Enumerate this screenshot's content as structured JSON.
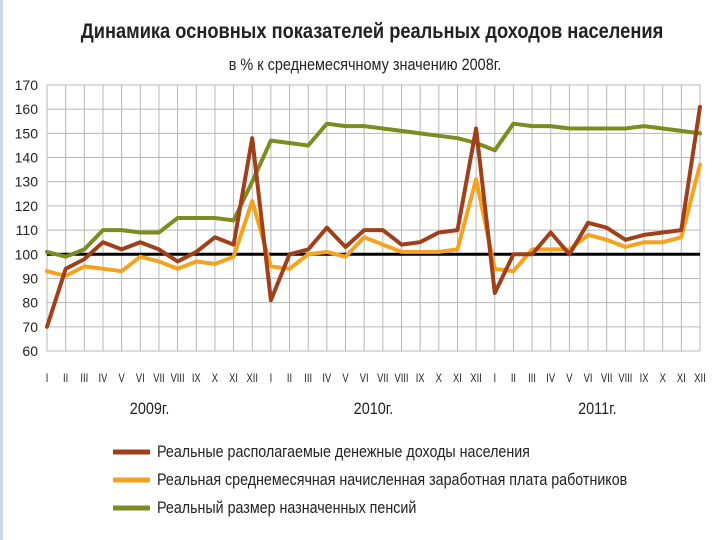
{
  "chart_data": {
    "type": "line",
    "title": "Динамика основных показателей реальных доходов населения",
    "subtitle": "в % к среднемесячному значению 2008г.",
    "ylim": [
      60,
      170
    ],
    "yticks": [
      60,
      70,
      80,
      90,
      100,
      110,
      120,
      130,
      140,
      150,
      160,
      170
    ],
    "grid": true,
    "reference_line": 100,
    "legend_position": "bottom",
    "categories": [
      "I",
      "II",
      "III",
      "IV",
      "V",
      "VI",
      "VII",
      "VIII",
      "IX",
      "X",
      "XI",
      "XII",
      "I",
      "II",
      "III",
      "IV",
      "V",
      "VI",
      "VII",
      "VIII",
      "IX",
      "X",
      "XI",
      "XII",
      "I",
      "II",
      "III",
      "IV",
      "V",
      "VI",
      "VII",
      "VIII",
      "IX",
      "X",
      "XI",
      "XII"
    ],
    "year_labels": [
      "2009г.",
      "2010г.",
      "2011г."
    ],
    "series": [
      {
        "name": "Реальные располагаемые денежные доходы населения",
        "color": "#a0401a",
        "values": [
          70,
          94,
          98,
          105,
          102,
          105,
          102,
          97,
          101,
          107,
          104,
          148,
          81,
          100,
          102,
          111,
          103,
          110,
          110,
          104,
          105,
          109,
          110,
          152,
          84,
          100,
          100,
          109,
          100,
          113,
          111,
          106,
          108,
          109,
          110,
          161
        ]
      },
      {
        "name": "Реальная среднемесячная начисленная заработная плата работников",
        "color": "#f5a21e",
        "values": [
          93,
          91,
          95,
          94,
          93,
          99,
          97,
          94,
          97,
          96,
          99,
          122,
          95,
          94,
          100,
          101,
          99,
          107,
          104,
          101,
          101,
          101,
          102,
          131,
          94,
          93,
          102,
          102,
          102,
          108,
          106,
          103,
          105,
          105,
          107,
          137
        ]
      },
      {
        "name": "Реальный размер назначенных пенсий",
        "color": "#7d8c1e",
        "values": [
          101,
          99,
          102,
          110,
          110,
          109,
          109,
          115,
          115,
          115,
          114,
          130,
          147,
          146,
          145,
          154,
          153,
          153,
          152,
          151,
          150,
          149,
          148,
          146,
          143,
          154,
          153,
          153,
          152,
          152,
          152,
          152,
          153,
          152,
          151,
          150
        ]
      }
    ]
  }
}
